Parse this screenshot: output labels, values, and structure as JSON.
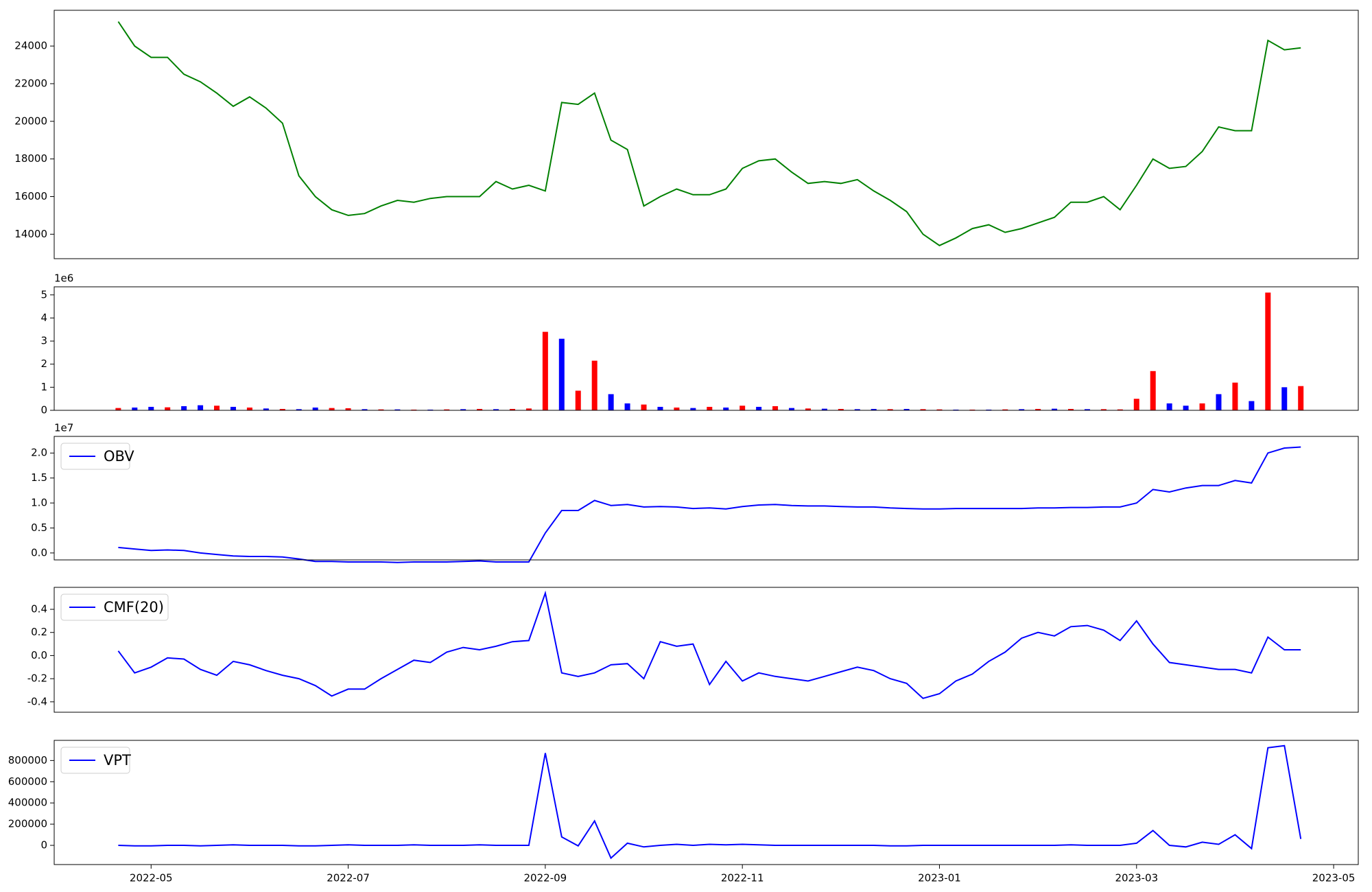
{
  "chart_data": [
    {
      "type": "line",
      "color": "#008000",
      "ylim": [
        12700,
        25900
      ],
      "yticks": [
        14000,
        16000,
        18000,
        20000,
        22000,
        24000
      ],
      "values": [
        25300,
        24000,
        23400,
        23400,
        22500,
        22100,
        21500,
        20800,
        21300,
        20700,
        19900,
        17100,
        16000,
        15300,
        15000,
        15100,
        15500,
        15800,
        15700,
        15900,
        16000,
        16000,
        16000,
        16800,
        16400,
        16600,
        16300,
        21000,
        20900,
        21500,
        19000,
        18500,
        15500,
        16000,
        16400,
        16100,
        16100,
        16400,
        17500,
        17900,
        18000,
        17300,
        16700,
        16800,
        16700,
        16900,
        16300,
        15800,
        15200,
        14000,
        13400,
        13800,
        14300,
        14500,
        14100,
        14300,
        14600,
        14900,
        15700,
        15700,
        16000,
        15300,
        16600,
        18000,
        17500,
        17600,
        18400,
        19700,
        19500,
        19500,
        24300,
        23800,
        23900
      ]
    },
    {
      "type": "bar",
      "offset_label": "1e6",
      "ylim": [
        0,
        5350000
      ],
      "yticks": [
        0,
        {
          "value": 1000000,
          "label": "1"
        },
        {
          "value": 2000000,
          "label": "2"
        },
        {
          "value": 3000000,
          "label": "3"
        },
        {
          "value": 4000000,
          "label": "4"
        },
        {
          "value": 5000000,
          "label": "5"
        }
      ],
      "values": [
        100000,
        120000,
        150000,
        130000,
        180000,
        220000,
        200000,
        150000,
        120000,
        80000,
        60000,
        50000,
        120000,
        100000,
        90000,
        50000,
        40000,
        40000,
        30000,
        30000,
        40000,
        50000,
        60000,
        50000,
        60000,
        80000,
        3400000,
        3100000,
        850000,
        2150000,
        700000,
        300000,
        250000,
        150000,
        120000,
        100000,
        150000,
        120000,
        200000,
        150000,
        180000,
        100000,
        80000,
        70000,
        60000,
        50000,
        60000,
        50000,
        60000,
        50000,
        40000,
        30000,
        30000,
        30000,
        40000,
        50000,
        60000,
        70000,
        60000,
        50000,
        50000,
        40000,
        500000,
        1700000,
        300000,
        200000,
        300000,
        700000,
        1200000,
        400000,
        5100000,
        1000000,
        1050000
      ],
      "colors": [
        "red",
        "blue",
        "blue",
        "red",
        "blue",
        "blue",
        "red",
        "blue",
        "red",
        "blue",
        "red",
        "blue",
        "blue",
        "red",
        "red",
        "blue",
        "red",
        "blue",
        "red",
        "blue",
        "red",
        "blue",
        "red",
        "blue",
        "red",
        "red",
        "red",
        "blue",
        "red",
        "red",
        "blue",
        "blue",
        "red",
        "blue",
        "red",
        "blue",
        "red",
        "blue",
        "red",
        "blue",
        "red",
        "blue",
        "red",
        "blue",
        "red",
        "blue",
        "blue",
        "red",
        "blue",
        "red",
        "red",
        "blue",
        "red",
        "blue",
        "red",
        "blue",
        "red",
        "blue",
        "red",
        "blue",
        "red",
        "red",
        "red",
        "red",
        "blue",
        "blue",
        "red",
        "blue",
        "red",
        "blue",
        "red",
        "blue",
        "red"
      ]
    },
    {
      "type": "line",
      "offset_label": "1e7",
      "legend": "upper left",
      "ylim": [
        -1390000,
        23330000
      ],
      "yticks": [
        {
          "value": 0,
          "label": "0.0"
        },
        {
          "value": 5000000,
          "label": "0.5"
        },
        {
          "value": 10000000,
          "label": "1.0"
        },
        {
          "value": 15000000,
          "label": "1.5"
        },
        {
          "value": 20000000,
          "label": "2.0"
        }
      ],
      "series": [
        {
          "name": "OBV",
          "color": "blue",
          "values": [
            1100000,
            800000,
            500000,
            600000,
            500000,
            0,
            -300000,
            -600000,
            -700000,
            -700000,
            -800000,
            -1200000,
            -1700000,
            -1700000,
            -1800000,
            -1800000,
            -1800000,
            -1900000,
            -1800000,
            -1800000,
            -1800000,
            -1700000,
            -1600000,
            -1800000,
            -1800000,
            -1800000,
            4000000,
            8500000,
            8500000,
            10500000,
            9500000,
            9700000,
            9200000,
            9300000,
            9200000,
            8900000,
            9000000,
            8800000,
            9300000,
            9600000,
            9700000,
            9500000,
            9400000,
            9400000,
            9300000,
            9200000,
            9200000,
            9000000,
            8900000,
            8800000,
            8800000,
            8900000,
            8900000,
            8900000,
            8900000,
            8900000,
            9000000,
            9000000,
            9100000,
            9100000,
            9200000,
            9200000,
            10000000,
            12700000,
            12200000,
            13000000,
            13500000,
            13500000,
            14500000,
            14000000,
            20000000,
            21000000,
            21200000
          ]
        }
      ]
    },
    {
      "type": "line",
      "legend": "upper left",
      "ylim": [
        -0.49,
        0.59
      ],
      "yticks": [
        -0.4,
        -0.2,
        {
          "value": 0,
          "label": "0.0"
        },
        0.2,
        0.4
      ],
      "series": [
        {
          "name": "CMF(20)",
          "color": "blue",
          "values": [
            0.04,
            -0.15,
            -0.1,
            -0.02,
            -0.03,
            -0.12,
            -0.17,
            -0.05,
            -0.08,
            -0.13,
            -0.17,
            -0.2,
            -0.26,
            -0.35,
            -0.29,
            -0.29,
            -0.2,
            -0.12,
            -0.04,
            -0.06,
            0.03,
            0.07,
            0.05,
            0.08,
            0.12,
            0.13,
            0.54,
            -0.15,
            -0.18,
            -0.15,
            -0.08,
            -0.07,
            -0.2,
            0.12,
            0.08,
            0.1,
            -0.25,
            -0.05,
            -0.22,
            -0.15,
            -0.18,
            -0.2,
            -0.22,
            -0.18,
            -0.14,
            -0.1,
            -0.13,
            -0.2,
            -0.24,
            -0.37,
            -0.33,
            -0.22,
            -0.16,
            -0.05,
            0.03,
            0.15,
            0.2,
            0.17,
            0.25,
            0.26,
            0.22,
            0.13,
            0.3,
            0.1,
            -0.06,
            -0.08,
            -0.1,
            -0.12,
            -0.12,
            -0.15,
            0.16,
            0.05,
            0.05
          ]
        }
      ]
    },
    {
      "type": "line",
      "legend": "upper left",
      "ylim": [
        -181000,
        990000
      ],
      "yticks": [
        0,
        200000,
        400000,
        600000,
        800000
      ],
      "categories": [
        null,
        null,
        "2022-05",
        null,
        null,
        null,
        null,
        null,
        null,
        null,
        null,
        null,
        null,
        null,
        "2022-07",
        null,
        null,
        null,
        null,
        null,
        null,
        null,
        null,
        null,
        null,
        null,
        "2022-09",
        null,
        null,
        null,
        null,
        null,
        null,
        null,
        null,
        null,
        null,
        null,
        "2022-11",
        null,
        null,
        null,
        null,
        null,
        null,
        null,
        null,
        null,
        null,
        null,
        "2023-01",
        null,
        null,
        null,
        null,
        null,
        null,
        null,
        null,
        null,
        null,
        null,
        "2023-03",
        null,
        null,
        null,
        null,
        null,
        null,
        null,
        null,
        null,
        null,
        null,
        "2023-05"
      ],
      "series": [
        {
          "name": "VPT",
          "color": "blue",
          "values": [
            0,
            -5000,
            -5000,
            0,
            0,
            -5000,
            0,
            5000,
            0,
            0,
            0,
            -5000,
            -5000,
            0,
            5000,
            0,
            0,
            0,
            5000,
            0,
            0,
            0,
            5000,
            0,
            0,
            0,
            870000,
            80000,
            -5000,
            230000,
            -120000,
            20000,
            -15000,
            0,
            10000,
            0,
            10000,
            5000,
            10000,
            5000,
            0,
            0,
            0,
            0,
            0,
            0,
            0,
            -5000,
            -5000,
            0,
            0,
            0,
            0,
            0,
            0,
            0,
            0,
            0,
            5000,
            0,
            0,
            0,
            20000,
            140000,
            0,
            -15000,
            30000,
            10000,
            100000,
            -30000,
            920000,
            940000,
            60000,
            null,
            null
          ]
        }
      ]
    }
  ]
}
